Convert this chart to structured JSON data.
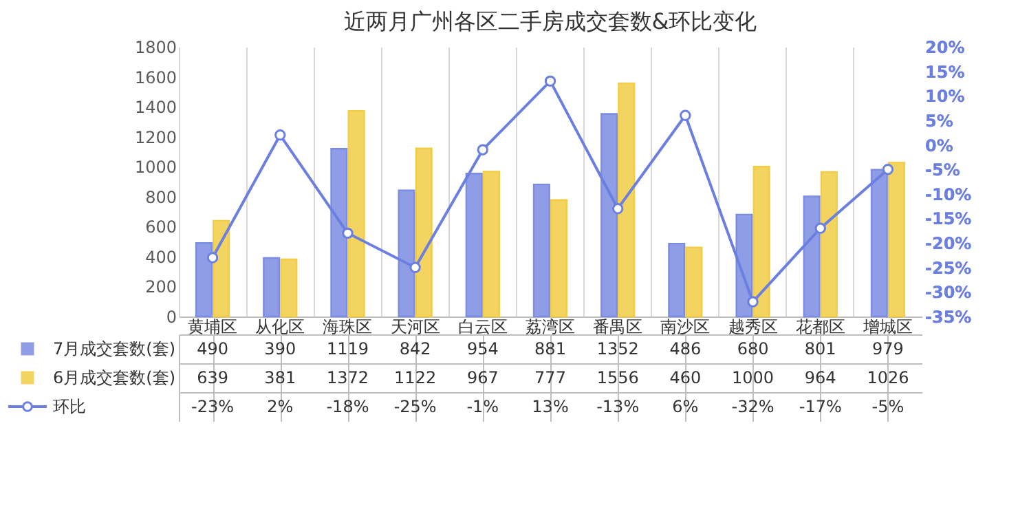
{
  "chart_data": {
    "type": "bar",
    "title": "近两月广州各区二手房成交套数&环比变化",
    "categories": [
      "黄埔区",
      "从化区",
      "海珠区",
      "天河区",
      "白云区",
      "荔湾区",
      "番禺区",
      "南沙区",
      "越秀区",
      "花都区",
      "增城区"
    ],
    "series": [
      {
        "name": "7月成交套数(套)",
        "color": "#7b8ce3",
        "values": [
          490,
          390,
          1119,
          842,
          954,
          881,
          1352,
          486,
          680,
          801,
          979
        ]
      },
      {
        "name": "6月成交套数(套)",
        "color": "#f2cc45",
        "values": [
          639,
          381,
          1372,
          1122,
          967,
          777,
          1556,
          460,
          1000,
          964,
          1026
        ]
      },
      {
        "name": "环比",
        "type": "line",
        "axis": "y2",
        "color": "#6b7fe0",
        "marker": "circle",
        "values": [
          -23,
          2,
          -18,
          -25,
          -1,
          13,
          -13,
          6,
          -32,
          -17,
          -5
        ],
        "value_labels": [
          "-23%",
          "2%",
          "-18%",
          "-25%",
          "-1%",
          "13%",
          "-13%",
          "6%",
          "-32%",
          "-17%",
          "-5%"
        ]
      }
    ],
    "ylim": [
      0,
      1800
    ],
    "yticks": [
      0,
      200,
      400,
      600,
      800,
      1000,
      1200,
      1400,
      1600,
      1800
    ],
    "y2lim": [
      -35,
      20
    ],
    "y2ticks": [
      {
        "value": -35,
        "label": "-35%"
      },
      {
        "value": -30,
        "label": "-30%"
      },
      {
        "value": -25,
        "label": "-25%"
      },
      {
        "value": -20,
        "label": "-20%"
      },
      {
        "value": -15,
        "label": "-15%"
      },
      {
        "value": -10,
        "label": "-10%"
      },
      {
        "value": -5,
        "label": "-5%"
      },
      {
        "value": 0,
        "label": "0%"
      },
      {
        "value": 5,
        "label": "5%"
      },
      {
        "value": 10,
        "label": "10%"
      },
      {
        "value": 15,
        "label": "15%"
      },
      {
        "value": 20,
        "label": "20%"
      }
    ],
    "grid": "x",
    "legend": "bottom",
    "data_labels": true
  }
}
